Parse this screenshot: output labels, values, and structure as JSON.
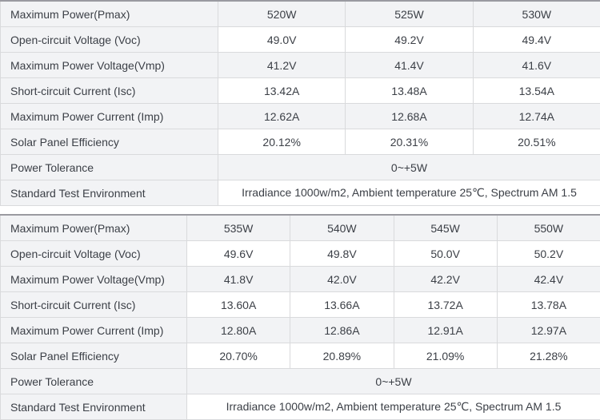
{
  "colors": {
    "cell_border": "#d9dadc",
    "table_top_border": "#9a9aa0",
    "striped_row_bg": "#f2f3f5",
    "plain_row_bg": "#ffffff",
    "label_cell_bg": "#f2f3f5",
    "text": "#3b3f46"
  },
  "tables": [
    {
      "name": "spec-table-520-530w",
      "label_col_width": 272,
      "value_col_count": 3,
      "rows": [
        {
          "label": "Maximum Power(Pmax)",
          "values": [
            "520W",
            "525W",
            "530W"
          ]
        },
        {
          "label": "Open-circuit Voltage (Voc)",
          "values": [
            "49.0V",
            "49.2V",
            "49.4V"
          ]
        },
        {
          "label": "Maximum Power Voltage(Vmp)",
          "values": [
            "41.2V",
            "41.4V",
            "41.6V"
          ]
        },
        {
          "label": "Short-circuit Current (Isc)",
          "values": [
            "13.42A",
            "13.48A",
            "13.54A"
          ]
        },
        {
          "label": "Maximum Power Current (Imp)",
          "values": [
            "12.62A",
            "12.68A",
            "12.74A"
          ]
        },
        {
          "label": "Solar Panel Efficiency",
          "values": [
            "20.12%",
            "20.31%",
            "20.51%"
          ]
        },
        {
          "label": "Power Tolerance",
          "values": [
            "0~+5W"
          ],
          "span": true
        },
        {
          "label": "Standard Test Environment",
          "values": [
            "Irradiance 1000w/m2, Ambient temperature 25℃, Spectrum AM 1.5"
          ],
          "span": true
        }
      ]
    },
    {
      "name": "spec-table-535-550w",
      "label_col_width": 233,
      "value_col_count": 4,
      "rows": [
        {
          "label": "Maximum Power(Pmax)",
          "values": [
            "535W",
            "540W",
            "545W",
            "550W"
          ]
        },
        {
          "label": "Open-circuit Voltage (Voc)",
          "values": [
            "49.6V",
            "49.8V",
            "50.0V",
            "50.2V"
          ]
        },
        {
          "label": "Maximum Power Voltage(Vmp)",
          "values": [
            "41.8V",
            "42.0V",
            "42.2V",
            "42.4V"
          ]
        },
        {
          "label": "Short-circuit Current (Isc)",
          "values": [
            "13.60A",
            "13.66A",
            "13.72A",
            "13.78A"
          ]
        },
        {
          "label": "Maximum Power Current (Imp)",
          "values": [
            "12.80A",
            "12.86A",
            "12.91A",
            "12.97A"
          ]
        },
        {
          "label": "Solar Panel Efficiency",
          "values": [
            "20.70%",
            "20.89%",
            "21.09%",
            "21.28%"
          ]
        },
        {
          "label": "Power Tolerance",
          "values": [
            "0~+5W"
          ],
          "span": true
        },
        {
          "label": "Standard Test Environment",
          "values": [
            "Irradiance 1000w/m2, Ambient temperature 25℃, Spectrum AM 1.5"
          ],
          "span": true
        }
      ]
    }
  ]
}
